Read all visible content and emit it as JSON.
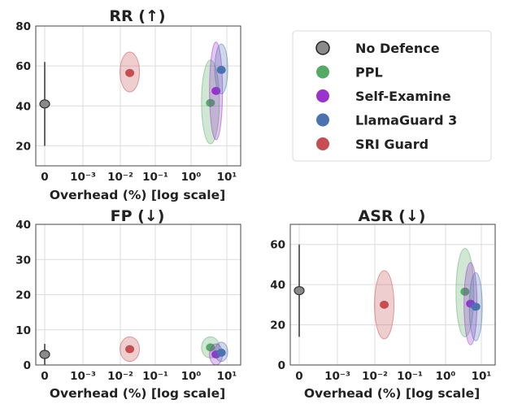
{
  "colors": {
    "no_defence": "#8a8a8a",
    "ppl": "#55aa66",
    "self_examine": "#9933cc",
    "llamaguard3": "#4c72b0",
    "sri_guard": "#c44e52"
  },
  "legend": {
    "items": [
      {
        "label": "No Defence",
        "color": "#8a8a8a"
      },
      {
        "label": "PPL",
        "color": "#55aa66"
      },
      {
        "label": "Self-Examine",
        "color": "#9933cc"
      },
      {
        "label": "LlamaGuard 3",
        "color": "#4c72b0"
      },
      {
        "label": "SRI Guard",
        "color": "#c44e52"
      }
    ]
  },
  "chart_data": [
    {
      "id": "rr",
      "type": "scatter",
      "title": "RR (↑)",
      "xlabel": "Overhead (%) [log scale]",
      "ylabel": "",
      "ylim": [
        10,
        80
      ],
      "yticks": [
        20,
        40,
        60,
        80
      ],
      "xticks": [
        "0",
        "10⁻³",
        "10⁻²",
        "10⁻¹",
        "10⁰",
        "10¹"
      ],
      "series": [
        {
          "name": "No Defence",
          "x": 0,
          "y": 41,
          "y_range": [
            20,
            62
          ]
        },
        {
          "name": "SRI Guard",
          "x": 0.02,
          "y": 56.5,
          "y_range": [
            47,
            67
          ]
        },
        {
          "name": "PPL",
          "x": 3.5,
          "y": 41.5,
          "y_range": [
            21,
            63
          ]
        },
        {
          "name": "Self-Examine",
          "x": 5,
          "y": 47.5,
          "y_range": [
            23,
            72
          ]
        },
        {
          "name": "LlamaGuard 3",
          "x": 7,
          "y": 58,
          "y_range": [
            46,
            71
          ]
        }
      ]
    },
    {
      "id": "fp",
      "type": "scatter",
      "title": "FP (↓)",
      "xlabel": "Overhead (%) [log scale]",
      "ylabel": "",
      "ylim": [
        0,
        40
      ],
      "yticks": [
        0,
        10,
        20,
        30,
        40
      ],
      "xticks": [
        "0",
        "10⁻³",
        "10⁻²",
        "10⁻¹",
        "10⁰",
        "10¹"
      ],
      "series": [
        {
          "name": "No Defence",
          "x": 0,
          "y": 3,
          "y_range": [
            0,
            6
          ]
        },
        {
          "name": "SRI Guard",
          "x": 0.02,
          "y": 4.5,
          "y_range": [
            1,
            8
          ]
        },
        {
          "name": "PPL",
          "x": 3.5,
          "y": 5,
          "y_range": [
            2,
            8
          ]
        },
        {
          "name": "Self-Examine",
          "x": 5,
          "y": 3,
          "y_range": [
            0,
            6
          ]
        },
        {
          "name": "LlamaGuard 3",
          "x": 7,
          "y": 3.5,
          "y_range": [
            1,
            6.5
          ]
        }
      ]
    },
    {
      "id": "asr",
      "type": "scatter",
      "title": "ASR (↓)",
      "xlabel": "Overhead (%) [log scale]",
      "ylabel": "",
      "ylim": [
        0,
        70
      ],
      "yticks": [
        0,
        20,
        40,
        60
      ],
      "xticks": [
        "0",
        "10⁻³",
        "10⁻²",
        "10⁻¹",
        "10⁰",
        "10¹"
      ],
      "series": [
        {
          "name": "No Defence",
          "x": 0,
          "y": 37,
          "y_range": [
            14,
            60
          ]
        },
        {
          "name": "SRI Guard",
          "x": 0.02,
          "y": 30,
          "y_range": [
            13,
            47
          ]
        },
        {
          "name": "PPL",
          "x": 3.5,
          "y": 36.5,
          "y_range": [
            14,
            58
          ]
        },
        {
          "name": "Self-Examine",
          "x": 5,
          "y": 30.5,
          "y_range": [
            10,
            51
          ]
        },
        {
          "name": "LlamaGuard 3",
          "x": 7,
          "y": 29,
          "y_range": [
            12,
            46
          ]
        }
      ]
    }
  ]
}
